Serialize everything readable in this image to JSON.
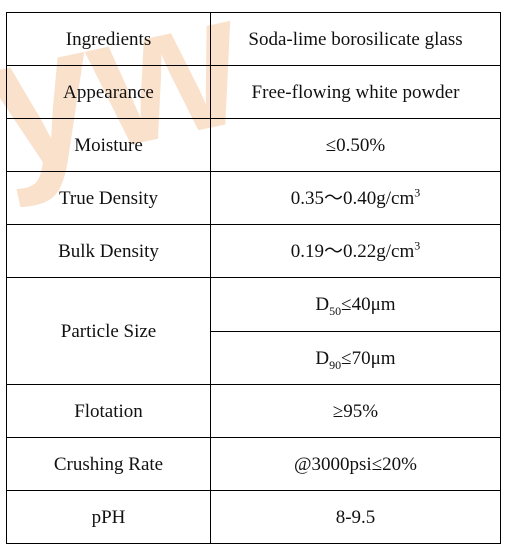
{
  "colors": {
    "border": "#000000",
    "text": "#111111",
    "watermark": "#f6c9a0"
  },
  "watermark": {
    "text": "yw"
  },
  "rows": [
    {
      "label": "Ingredients",
      "value": "Soda-lime borosilicate glass"
    },
    {
      "label": "Appearance",
      "value": "Free-flowing white powder"
    },
    {
      "label": "Moisture",
      "value": "≤0.50%"
    },
    {
      "label": "True Density",
      "value": "0.35～0.40g/cm",
      "value_sup": "3"
    },
    {
      "label": "Bulk Density",
      "value": "0.19～0.22g/cm",
      "value_sup": "3"
    },
    {
      "label": "Particle Size",
      "sub_values": [
        {
          "prefix": "D",
          "sub": "50",
          "value": "≤40μm"
        },
        {
          "prefix": "D",
          "sub": "90",
          "value": "≤70μm"
        }
      ]
    },
    {
      "label": "Flotation",
      "value": "≥95%"
    },
    {
      "label": "Crushing Rate",
      "value": "@3000psi≤20%"
    },
    {
      "label": "pPH",
      "value": "8-9.5"
    }
  ]
}
